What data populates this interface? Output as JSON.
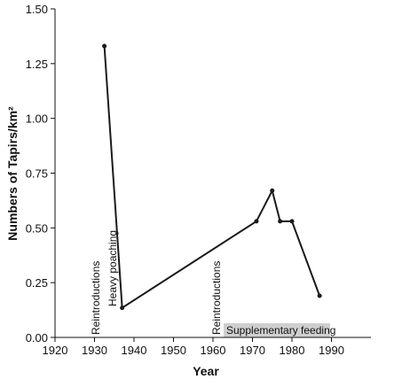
{
  "chart_data": {
    "type": "line",
    "xlabel": "Year",
    "ylabel": "Numbers of Tapirs/km²",
    "x": [
      1932.5,
      1937,
      1971,
      1975,
      1977,
      1980,
      1987
    ],
    "series": [
      {
        "color": "#1a1a1a",
        "values": [
          1.33,
          0.135,
          0.53,
          0.67,
          0.53,
          0.53,
          0.19
        ]
      }
    ],
    "xlim": [
      1920,
      2000
    ],
    "xticks": [
      1920,
      1930,
      1940,
      1950,
      1960,
      1970,
      1980,
      1990
    ],
    "ylim": [
      0,
      1.5
    ],
    "yticks": [
      {
        "value": 0,
        "label": "0.00"
      },
      0.25,
      {
        "value": 0.5,
        "label": "0.50"
      },
      0.75,
      {
        "value": 1,
        "label": "1.00"
      },
      1.25,
      {
        "value": 1.5,
        "label": "1.50"
      }
    ],
    "annotations": [
      "Reintroductions",
      "Heavy poaching",
      "Reintroductions",
      "Supplementary feeding"
    ]
  }
}
